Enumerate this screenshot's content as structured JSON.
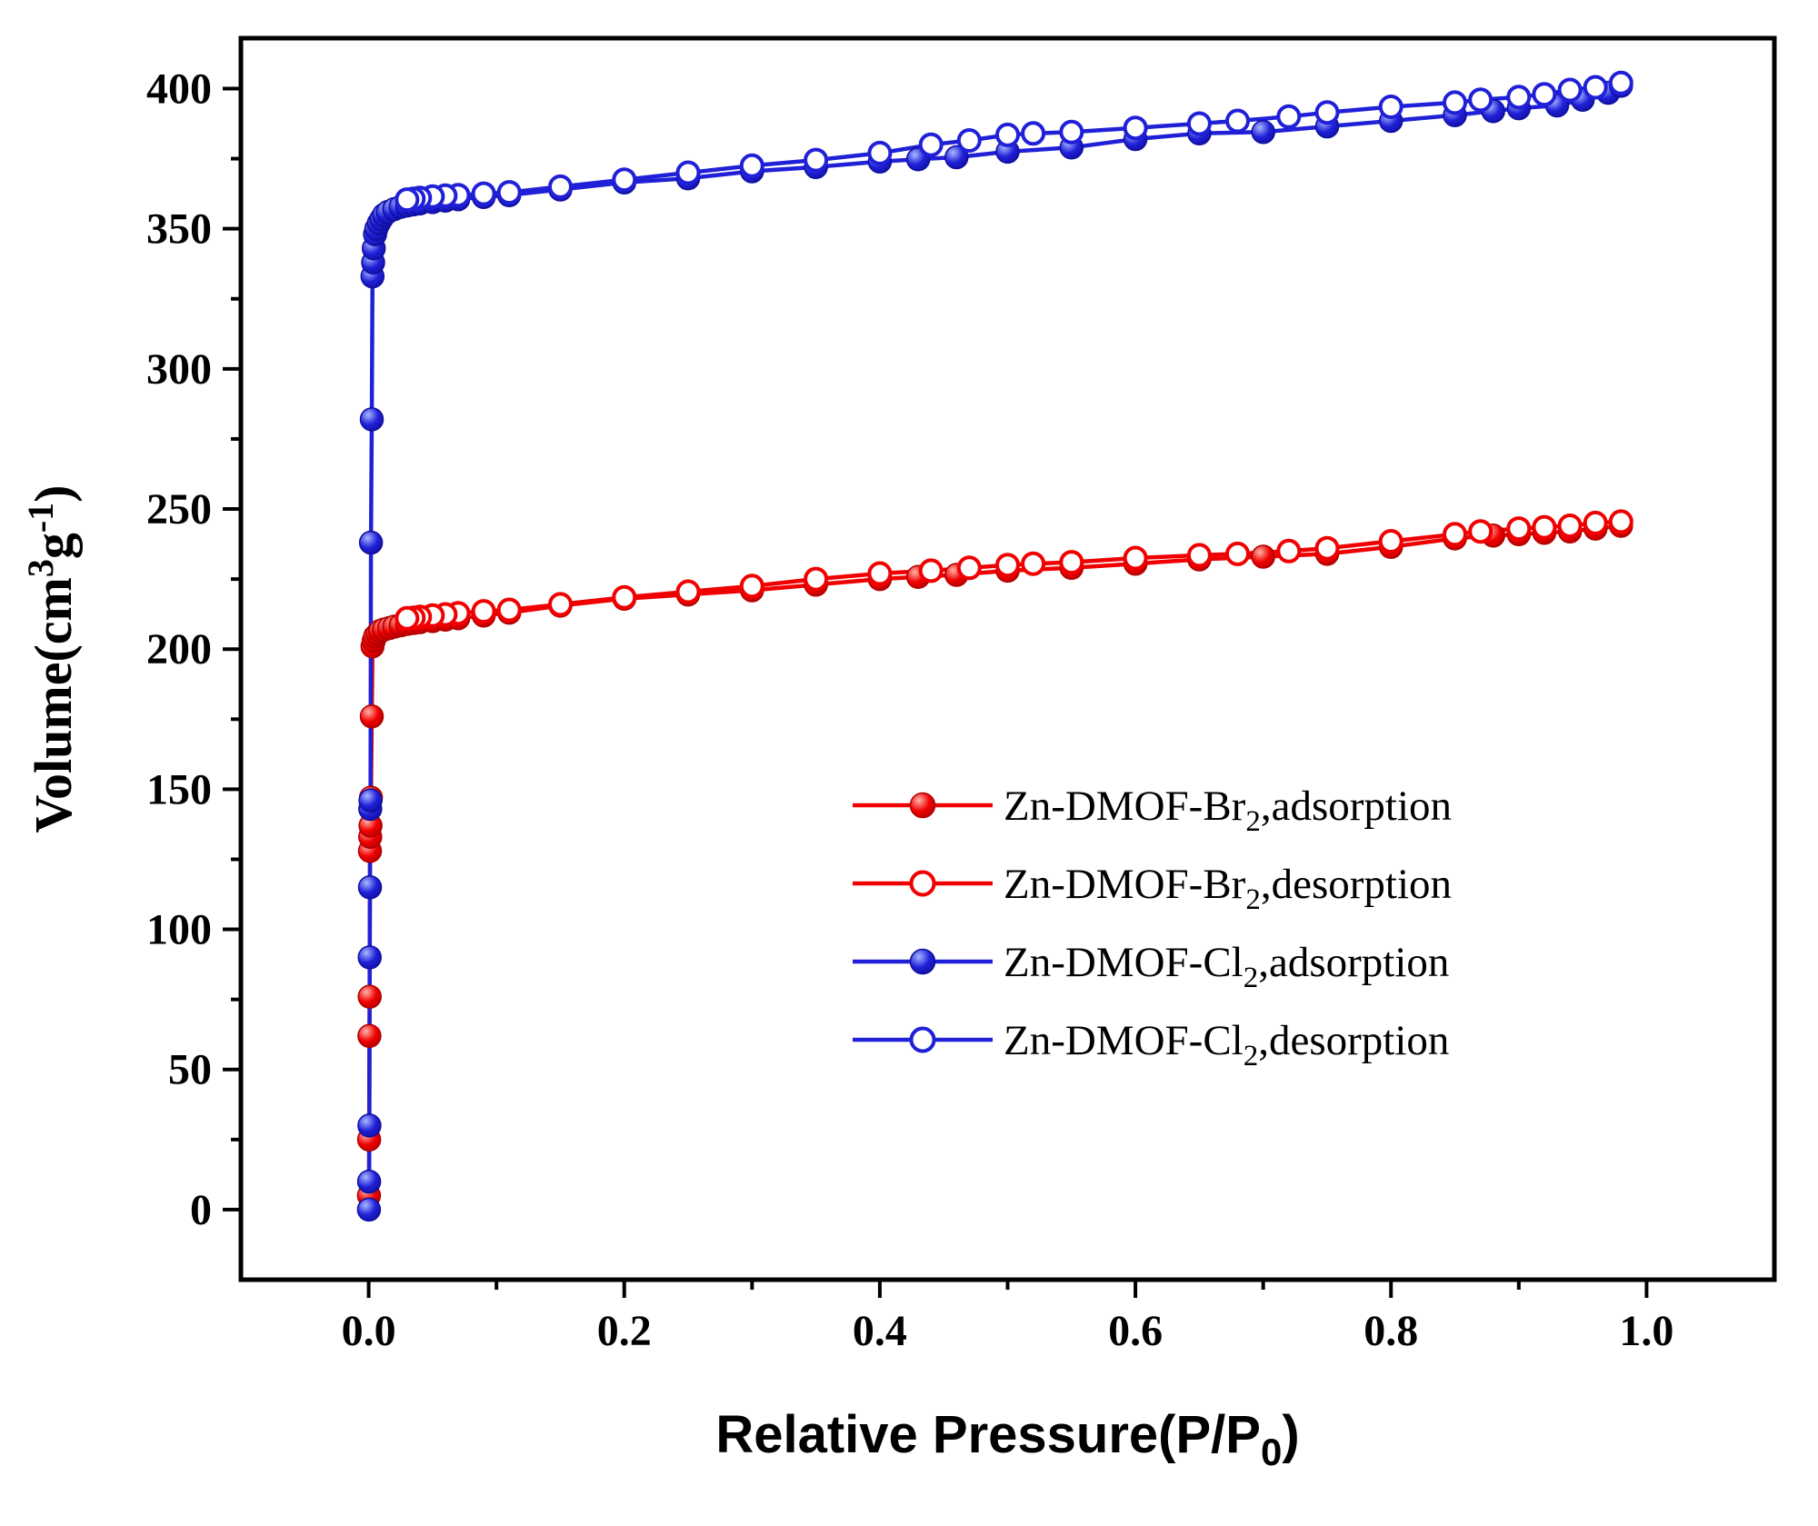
{
  "figure": {
    "xlabel": {
      "prefix": "Relative Pressure(P/P",
      "sub": "0",
      "suffix": ")"
    },
    "ylabel": {
      "prefix": "Volume(cm",
      "sup1": "3",
      "mid": "g",
      "sup2": "-1",
      "suffix": ")"
    }
  },
  "chart_data": {
    "type": "line",
    "title": "",
    "xlabel": "Relative Pressure(P/P0)",
    "ylabel": "Volume(cm3 g-1)",
    "xlim": [
      -0.1,
      1.1
    ],
    "ylim": [
      -25,
      418
    ],
    "grid": false,
    "legend_position": "inside-center-right",
    "x_ticks": [
      0.0,
      0.2,
      0.4,
      0.6,
      0.8,
      1.0
    ],
    "x_tick_labels": [
      "0.0",
      "0.2",
      "0.4",
      "0.6",
      "0.8",
      "1.0"
    ],
    "x_minor_step": 0.1,
    "y_ticks": [
      0,
      50,
      100,
      150,
      200,
      250,
      300,
      350,
      400
    ],
    "y_tick_labels": [
      "0",
      "50",
      "100",
      "150",
      "200",
      "250",
      "300",
      "350",
      "400"
    ],
    "y_minor_step": 25,
    "axis_color": "#000000",
    "series": [
      {
        "name": "Zn-DMOF-Br2,adsorption",
        "label_prefix": "Zn-DMOF-Br",
        "label_sub": "2",
        "label_suffix": ",adsorption",
        "color": "#f00000",
        "edge": "#b00000",
        "highlight": "#ffb4aa",
        "marker": "filled",
        "points": [
          [
            0.0002,
            5
          ],
          [
            0.0004,
            25
          ],
          [
            0.0006,
            62
          ],
          [
            0.0008,
            76
          ],
          [
            0.001,
            128
          ],
          [
            0.0012,
            133
          ],
          [
            0.0014,
            137
          ],
          [
            0.0018,
            147
          ],
          [
            0.0024,
            176
          ],
          [
            0.003,
            201
          ],
          [
            0.004,
            203
          ],
          [
            0.005,
            204.5
          ],
          [
            0.007,
            205.5
          ],
          [
            0.009,
            206.5
          ],
          [
            0.012,
            207
          ],
          [
            0.016,
            207.5
          ],
          [
            0.02,
            208
          ],
          [
            0.025,
            208.5
          ],
          [
            0.03,
            209
          ],
          [
            0.035,
            209.3
          ],
          [
            0.04,
            209.6
          ],
          [
            0.05,
            210
          ],
          [
            0.06,
            210.5
          ],
          [
            0.07,
            211
          ],
          [
            0.09,
            212
          ],
          [
            0.11,
            213
          ],
          [
            0.15,
            215.5
          ],
          [
            0.2,
            218
          ],
          [
            0.25,
            219.5
          ],
          [
            0.3,
            221
          ],
          [
            0.35,
            223
          ],
          [
            0.4,
            225
          ],
          [
            0.43,
            225.8
          ],
          [
            0.46,
            226.5
          ],
          [
            0.5,
            228
          ],
          [
            0.55,
            229
          ],
          [
            0.6,
            230.5
          ],
          [
            0.65,
            232
          ],
          [
            0.7,
            233
          ],
          [
            0.75,
            234
          ],
          [
            0.8,
            236.5
          ],
          [
            0.85,
            239.5
          ],
          [
            0.88,
            240.5
          ],
          [
            0.9,
            241
          ],
          [
            0.92,
            241.5
          ],
          [
            0.94,
            242
          ],
          [
            0.96,
            243
          ],
          [
            0.98,
            244
          ]
        ]
      },
      {
        "name": "Zn-DMOF-Br2,desorption",
        "label_prefix": "Zn-DMOF-Br",
        "label_sub": "2",
        "label_suffix": ",desorption",
        "color": "#f00000",
        "edge": "#f00000",
        "highlight": "#ffffff",
        "marker": "open",
        "points": [
          [
            0.98,
            245.5
          ],
          [
            0.96,
            245
          ],
          [
            0.94,
            244
          ],
          [
            0.92,
            243.5
          ],
          [
            0.9,
            243
          ],
          [
            0.87,
            242
          ],
          [
            0.85,
            241
          ],
          [
            0.8,
            238.5
          ],
          [
            0.75,
            236
          ],
          [
            0.72,
            235
          ],
          [
            0.68,
            234
          ],
          [
            0.65,
            233.5
          ],
          [
            0.6,
            232.5
          ],
          [
            0.55,
            231
          ],
          [
            0.52,
            230.5
          ],
          [
            0.5,
            230
          ],
          [
            0.47,
            229
          ],
          [
            0.44,
            228
          ],
          [
            0.4,
            227
          ],
          [
            0.35,
            225
          ],
          [
            0.3,
            222.5
          ],
          [
            0.25,
            220.5
          ],
          [
            0.2,
            218.5
          ],
          [
            0.15,
            216
          ],
          [
            0.11,
            214
          ],
          [
            0.09,
            213.5
          ],
          [
            0.07,
            212.8
          ],
          [
            0.06,
            212.4
          ],
          [
            0.05,
            212
          ],
          [
            0.04,
            211.5
          ],
          [
            0.035,
            211.2
          ],
          [
            0.03,
            211
          ]
        ]
      },
      {
        "name": "Zn-DMOF-Cl2,adsorption",
        "label_prefix": "Zn-DMOF-Cl",
        "label_sub": "2",
        "label_suffix": ",adsorption",
        "color": "#2020d8",
        "edge": "#0f0fa0",
        "highlight": "#a8b8ff",
        "marker": "filled",
        "points": [
          [
            0.0002,
            0
          ],
          [
            0.0004,
            10
          ],
          [
            0.0006,
            30
          ],
          [
            0.0008,
            90
          ],
          [
            0.001,
            115
          ],
          [
            0.0012,
            143
          ],
          [
            0.0014,
            146
          ],
          [
            0.0018,
            238
          ],
          [
            0.0024,
            282
          ],
          [
            0.003,
            333
          ],
          [
            0.0035,
            338
          ],
          [
            0.004,
            343
          ],
          [
            0.005,
            348
          ],
          [
            0.006,
            350
          ],
          [
            0.008,
            352
          ],
          [
            0.01,
            353.5
          ],
          [
            0.012,
            355
          ],
          [
            0.015,
            356
          ],
          [
            0.02,
            357
          ],
          [
            0.025,
            357.8
          ],
          [
            0.03,
            358.3
          ],
          [
            0.035,
            358.7
          ],
          [
            0.04,
            359
          ],
          [
            0.05,
            359.5
          ],
          [
            0.06,
            360
          ],
          [
            0.07,
            360.5
          ],
          [
            0.09,
            361.3
          ],
          [
            0.11,
            362
          ],
          [
            0.15,
            364
          ],
          [
            0.2,
            366.5
          ],
          [
            0.25,
            368
          ],
          [
            0.3,
            370.5
          ],
          [
            0.35,
            372
          ],
          [
            0.4,
            374
          ],
          [
            0.43,
            374.8
          ],
          [
            0.46,
            375.5
          ],
          [
            0.5,
            377.5
          ],
          [
            0.55,
            379
          ],
          [
            0.6,
            382
          ],
          [
            0.65,
            384
          ],
          [
            0.7,
            384.5
          ],
          [
            0.75,
            386.5
          ],
          [
            0.8,
            388.5
          ],
          [
            0.85,
            390.5
          ],
          [
            0.88,
            392
          ],
          [
            0.9,
            393
          ],
          [
            0.93,
            394
          ],
          [
            0.95,
            396
          ],
          [
            0.97,
            398.5
          ],
          [
            0.98,
            401
          ]
        ]
      },
      {
        "name": "Zn-DMOF-Cl2,desorption",
        "label_prefix": "Zn-DMOF-Cl",
        "label_sub": "2",
        "label_suffix": ",desorption",
        "color": "#2020d8",
        "edge": "#2020d8",
        "highlight": "#ffffff",
        "marker": "open",
        "points": [
          [
            0.98,
            402
          ],
          [
            0.96,
            400.5
          ],
          [
            0.94,
            399.5
          ],
          [
            0.92,
            398
          ],
          [
            0.9,
            397
          ],
          [
            0.87,
            396
          ],
          [
            0.85,
            395
          ],
          [
            0.8,
            393.5
          ],
          [
            0.75,
            391.5
          ],
          [
            0.72,
            390
          ],
          [
            0.68,
            388.5
          ],
          [
            0.65,
            387.5
          ],
          [
            0.6,
            386
          ],
          [
            0.55,
            384.5
          ],
          [
            0.52,
            384
          ],
          [
            0.5,
            383.5
          ],
          [
            0.47,
            381.5
          ],
          [
            0.44,
            380
          ],
          [
            0.4,
            377
          ],
          [
            0.35,
            374.5
          ],
          [
            0.3,
            372.5
          ],
          [
            0.25,
            370
          ],
          [
            0.2,
            367.5
          ],
          [
            0.15,
            365
          ],
          [
            0.11,
            363
          ],
          [
            0.09,
            362.5
          ],
          [
            0.07,
            362
          ],
          [
            0.06,
            361.8
          ],
          [
            0.05,
            361.5
          ],
          [
            0.04,
            361
          ],
          [
            0.035,
            360.7
          ],
          [
            0.03,
            360.4
          ]
        ]
      }
    ]
  }
}
